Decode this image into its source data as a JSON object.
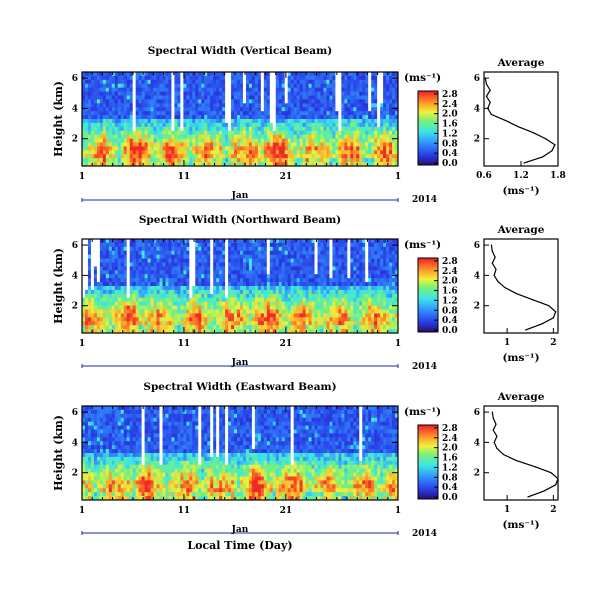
{
  "chart_data": [
    {
      "type": "heatmap",
      "title": "Spectral Width (Vertical Beam)",
      "ylabel": "Height (km)",
      "y_ticks": [
        "6",
        "4",
        "2"
      ],
      "x_ticks": [
        "1",
        "11",
        "21",
        "1"
      ],
      "month_label": "Jan",
      "year_label": "2014",
      "xlabel": "",
      "colorbar": {
        "unit": "(ms⁻¹)",
        "ticks": [
          "2.8",
          "2.4",
          "2.0",
          "1.6",
          "1.2",
          "0.8",
          "0.4",
          "0.0"
        ],
        "range": [
          0,
          3.0
        ]
      },
      "profile": {
        "title": "Average",
        "xlabel": "(ms⁻¹)",
        "x_ticks": [
          "0.6",
          "1.2",
          "1.8"
        ],
        "y_ticks": [
          "6",
          "4",
          "2"
        ],
        "xlim": [
          0.6,
          1.8
        ],
        "ylim": [
          0.4,
          6.0
        ],
        "heights": [
          0.4,
          0.8,
          1.2,
          1.6,
          2.0,
          2.4,
          2.8,
          3.2,
          3.6,
          4.0,
          4.4,
          4.8,
          5.2,
          5.6,
          6.0
        ],
        "values": [
          1.25,
          1.55,
          1.7,
          1.75,
          1.6,
          1.4,
          1.15,
          0.95,
          0.72,
          0.66,
          0.7,
          0.64,
          0.7,
          0.64,
          0.62
        ]
      }
    },
    {
      "type": "heatmap",
      "title": "Spectral Width (Northward Beam)",
      "ylabel": "Height (km)",
      "y_ticks": [
        "6",
        "4",
        "2"
      ],
      "x_ticks": [
        "1",
        "11",
        "21",
        "1"
      ],
      "month_label": "Jan",
      "year_label": "2014",
      "xlabel": "",
      "colorbar": {
        "unit": "(ms⁻¹)",
        "ticks": [
          "2.8",
          "2.4",
          "2.0",
          "1.6",
          "1.2",
          "0.8",
          "0.4",
          "0.0"
        ],
        "range": [
          0,
          3.0
        ]
      },
      "profile": {
        "title": "Average",
        "xlabel": "(ms⁻¹)",
        "x_ticks": [
          "1",
          "2"
        ],
        "y_ticks": [
          "6",
          "4",
          "2"
        ],
        "xlim": [
          0.5,
          2.1
        ],
        "ylim": [
          0.4,
          6.0
        ],
        "heights": [
          0.4,
          0.8,
          1.2,
          1.6,
          2.0,
          2.4,
          2.8,
          3.2,
          3.6,
          4.0,
          4.4,
          4.8,
          5.2,
          5.6,
          6.0
        ],
        "values": [
          1.4,
          1.75,
          2.0,
          2.05,
          1.9,
          1.55,
          1.2,
          0.95,
          0.8,
          0.72,
          0.76,
          0.68,
          0.74,
          0.68,
          0.66
        ]
      }
    },
    {
      "type": "heatmap",
      "title": "Spectral Width (Eastward Beam)",
      "ylabel": "Height (km)",
      "y_ticks": [
        "6",
        "4",
        "2"
      ],
      "x_ticks": [
        "1",
        "11",
        "21",
        "1"
      ],
      "month_label": "Jan",
      "year_label": "2014",
      "xlabel": "Local Time (Day)",
      "colorbar": {
        "unit": "(ms⁻¹)",
        "ticks": [
          "2.8",
          "2.4",
          "2.0",
          "1.6",
          "1.2",
          "0.8",
          "0.4",
          "0.0"
        ],
        "range": [
          0,
          3.0
        ]
      },
      "profile": {
        "title": "Average",
        "xlabel": "(ms⁻¹)",
        "x_ticks": [
          "1",
          "2"
        ],
        "y_ticks": [
          "6",
          "4",
          "2"
        ],
        "xlim": [
          0.5,
          2.1
        ],
        "ylim": [
          0.4,
          6.0
        ],
        "heights": [
          0.4,
          0.8,
          1.2,
          1.6,
          2.0,
          2.4,
          2.8,
          3.2,
          3.6,
          4.0,
          4.4,
          4.8,
          5.2,
          5.6,
          6.0
        ],
        "values": [
          1.45,
          1.8,
          2.05,
          2.1,
          1.95,
          1.6,
          1.2,
          0.92,
          0.78,
          0.72,
          0.78,
          0.7,
          0.76,
          0.7,
          0.68
        ]
      }
    }
  ]
}
